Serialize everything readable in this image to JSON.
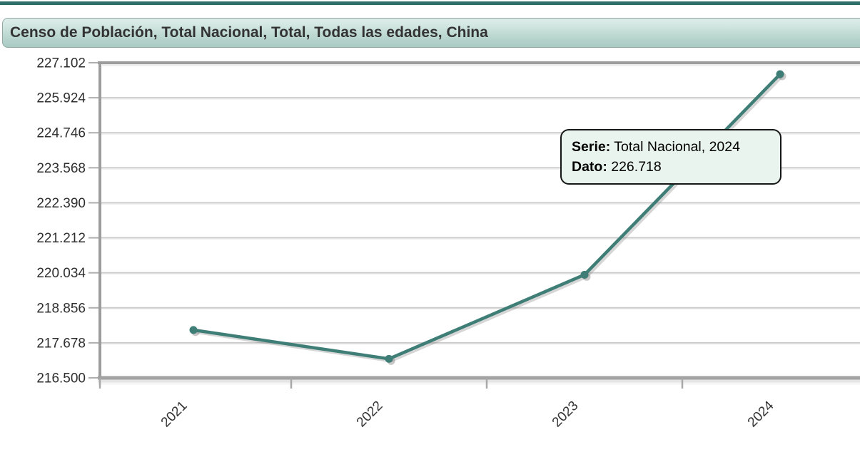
{
  "header": {
    "title": "Censo de Población, Total Nacional, Total, Todas las edades, China"
  },
  "chart_data": {
    "type": "line",
    "title": "Censo de Población, Total Nacional, Total, Todas las edades, China",
    "categories": [
      "2021",
      "2022",
      "2023",
      "2024"
    ],
    "series": [
      {
        "name": "Total Nacional",
        "values": [
          218.11,
          217.14,
          219.97,
          226.718
        ]
      }
    ],
    "values_note": "2024 value exact from tooltip (226.718); 2021-2023 estimated from plot; numbers use Spanish thousands-dot format",
    "y_ticks": [
      "227.102",
      "225.924",
      "224.746",
      "223.568",
      "222.390",
      "221.212",
      "220.034",
      "218.856",
      "217.678",
      "216.500"
    ],
    "ylim": [
      216.5,
      227.102
    ],
    "xlabel": "",
    "ylabel": "",
    "grid": "horizontal",
    "legend": "none",
    "line_color": "#3E7E77",
    "marker": "circle"
  },
  "tooltip": {
    "serie_label": "Serie:",
    "serie_value": " Total Nacional, 2024",
    "dato_label": "Dato:",
    "dato_value": " 226.718"
  },
  "colors": {
    "topbar": "#30706A",
    "title_bg_top": "#D6E9E4",
    "title_bg_bottom": "#A8CAC3",
    "title_text": "#333333",
    "line": "#3E7E77",
    "grid": "#CBCBCB",
    "frame": "#9C9C9C",
    "tick": "#AEAEAE",
    "tooltip_bg": "#E9F4EE",
    "tooltip_border": "#161616",
    "axis_text": "#2E2E2E"
  }
}
